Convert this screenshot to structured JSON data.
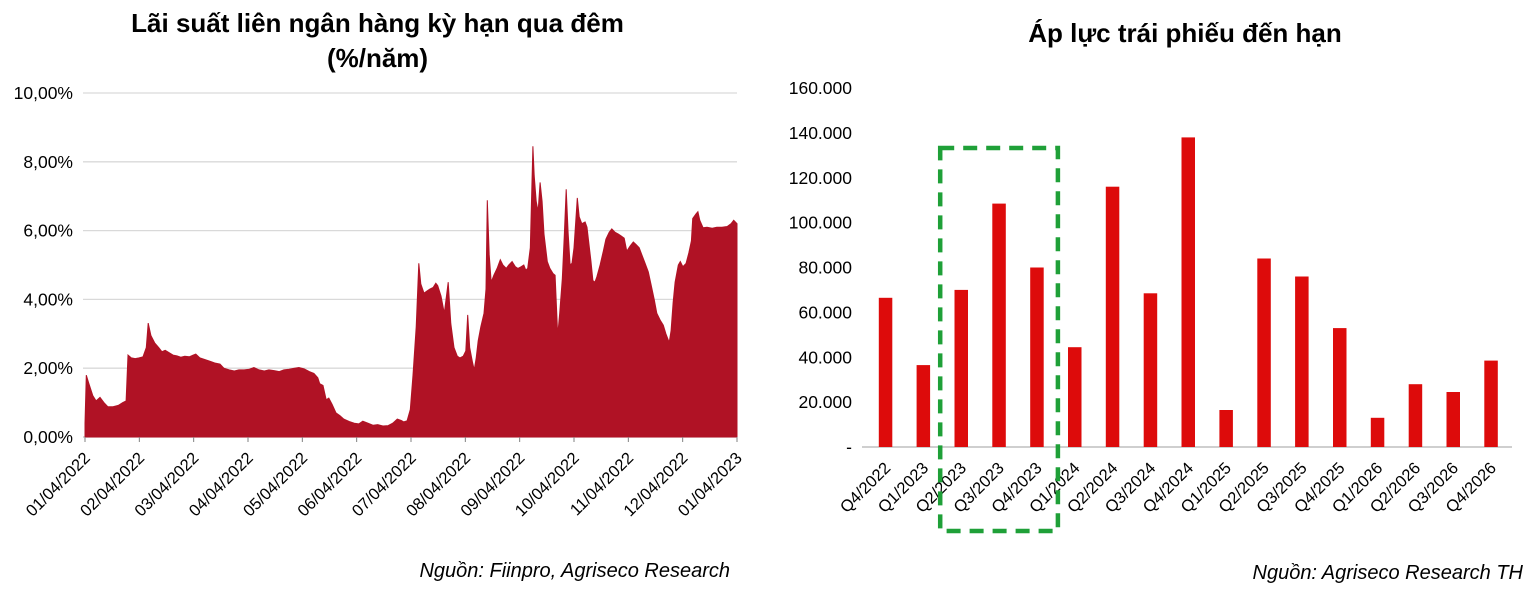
{
  "page": {
    "background": "#ffffff"
  },
  "left_chart": {
    "title_line1": "Lãi suất liên ngân hàng kỳ hạn qua đêm",
    "title_line2": "(%/năm)",
    "source": "Nguồn: Fiinpro, Agriseco Research"
  },
  "right_chart": {
    "title": "Áp lực trái phiếu đến hạn",
    "source": "Nguồn: Agriseco Research TH"
  },
  "colors": {
    "area_fill": "#B01225",
    "bar_red": "#DD0B0B",
    "highlight_green": "#1FA038",
    "gridline": "#D9D9D9",
    "axis_line": "#BFBFBF",
    "tick": "#808080",
    "text": "#000000"
  },
  "chart_data": [
    {
      "type": "area",
      "title": "Lãi suất liên ngân hàng kỳ hạn qua đêm (%/năm)",
      "ylabel": "%/năm",
      "ylim": [
        0,
        10
      ],
      "grid": true,
      "legend": "none",
      "y_ticks": [
        {
          "value": 0,
          "label": "0,00%"
        },
        {
          "value": 2,
          "label": "2,00%"
        },
        {
          "value": 4,
          "label": "4,00%"
        },
        {
          "value": 6,
          "label": "6,00%"
        },
        {
          "value": 8,
          "label": "8,00%"
        },
        {
          "value": 10,
          "label": "10,00%"
        }
      ],
      "x_tick_labels": [
        "01/04/2022",
        "02/04/2022",
        "03/04/2022",
        "04/04/2022",
        "05/04/2022",
        "06/04/2022",
        "07/04/2022",
        "08/04/2022",
        "09/04/2022",
        "10/04/2022",
        "11/04/2022",
        "12/04/2022",
        "01/04/2023"
      ],
      "series": [
        {
          "name": "Lãi suất liên ngân hàng qua đêm",
          "points": [
            [
              0.0,
              0.4
            ],
            [
              0.002,
              1.8
            ],
            [
              0.006,
              1.55
            ],
            [
              0.012,
              1.2
            ],
            [
              0.017,
              1.05
            ],
            [
              0.023,
              1.15
            ],
            [
              0.029,
              1.0
            ],
            [
              0.035,
              0.88
            ],
            [
              0.043,
              0.88
            ],
            [
              0.051,
              0.92
            ],
            [
              0.058,
              1.0
            ],
            [
              0.063,
              1.05
            ],
            [
              0.066,
              2.38
            ],
            [
              0.071,
              2.3
            ],
            [
              0.077,
              2.28
            ],
            [
              0.083,
              2.3
            ],
            [
              0.089,
              2.33
            ],
            [
              0.094,
              2.6
            ],
            [
              0.097,
              3.31
            ],
            [
              0.101,
              2.95
            ],
            [
              0.107,
              2.73
            ],
            [
              0.113,
              2.6
            ],
            [
              0.118,
              2.48
            ],
            [
              0.123,
              2.52
            ],
            [
              0.129,
              2.45
            ],
            [
              0.135,
              2.38
            ],
            [
              0.141,
              2.36
            ],
            [
              0.147,
              2.32
            ],
            [
              0.153,
              2.35
            ],
            [
              0.16,
              2.33
            ],
            [
              0.166,
              2.38
            ],
            [
              0.17,
              2.41
            ],
            [
              0.176,
              2.3
            ],
            [
              0.184,
              2.25
            ],
            [
              0.192,
              2.2
            ],
            [
              0.199,
              2.15
            ],
            [
              0.207,
              2.12
            ],
            [
              0.213,
              2.0
            ],
            [
              0.221,
              1.95
            ],
            [
              0.229,
              1.92
            ],
            [
              0.236,
              1.95
            ],
            [
              0.244,
              1.95
            ],
            [
              0.252,
              1.97
            ],
            [
              0.259,
              2.02
            ],
            [
              0.267,
              1.95
            ],
            [
              0.275,
              1.92
            ],
            [
              0.282,
              1.95
            ],
            [
              0.29,
              1.93
            ],
            [
              0.298,
              1.9
            ],
            [
              0.305,
              1.95
            ],
            [
              0.313,
              1.97
            ],
            [
              0.321,
              2.0
            ],
            [
              0.328,
              2.02
            ],
            [
              0.336,
              1.98
            ],
            [
              0.344,
              1.9
            ],
            [
              0.351,
              1.85
            ],
            [
              0.357,
              1.72
            ],
            [
              0.36,
              1.55
            ],
            [
              0.365,
              1.5
            ],
            [
              0.37,
              1.08
            ],
            [
              0.374,
              1.13
            ],
            [
              0.379,
              0.95
            ],
            [
              0.385,
              0.7
            ],
            [
              0.391,
              0.62
            ],
            [
              0.397,
              0.52
            ],
            [
              0.405,
              0.45
            ],
            [
              0.413,
              0.4
            ],
            [
              0.42,
              0.38
            ],
            [
              0.426,
              0.46
            ],
            [
              0.434,
              0.4
            ],
            [
              0.442,
              0.34
            ],
            [
              0.449,
              0.36
            ],
            [
              0.457,
              0.32
            ],
            [
              0.465,
              0.33
            ],
            [
              0.472,
              0.4
            ],
            [
              0.479,
              0.52
            ],
            [
              0.485,
              0.48
            ],
            [
              0.489,
              0.44
            ],
            [
              0.494,
              0.47
            ],
            [
              0.499,
              0.8
            ],
            [
              0.503,
              1.8
            ],
            [
              0.508,
              3.2
            ],
            [
              0.512,
              5.05
            ],
            [
              0.515,
              4.45
            ],
            [
              0.52,
              4.18
            ],
            [
              0.525,
              4.25
            ],
            [
              0.529,
              4.3
            ],
            [
              0.534,
              4.35
            ],
            [
              0.538,
              4.47
            ],
            [
              0.541,
              4.4
            ],
            [
              0.546,
              4.1
            ],
            [
              0.551,
              3.6
            ],
            [
              0.557,
              4.5
            ],
            [
              0.561,
              3.3
            ],
            [
              0.566,
              2.6
            ],
            [
              0.571,
              2.35
            ],
            [
              0.575,
              2.3
            ],
            [
              0.58,
              2.35
            ],
            [
              0.584,
              2.5
            ],
            [
              0.587,
              3.55
            ],
            [
              0.59,
              2.6
            ],
            [
              0.594,
              2.2
            ],
            [
              0.597,
              1.95
            ],
            [
              0.6,
              2.3
            ],
            [
              0.603,
              2.8
            ],
            [
              0.607,
              3.2
            ],
            [
              0.612,
              3.6
            ],
            [
              0.615,
              4.3
            ],
            [
              0.617,
              6.88
            ],
            [
              0.62,
              5.3
            ],
            [
              0.623,
              4.5
            ],
            [
              0.627,
              4.7
            ],
            [
              0.632,
              4.9
            ],
            [
              0.637,
              5.15
            ],
            [
              0.641,
              5.0
            ],
            [
              0.646,
              4.9
            ],
            [
              0.65,
              5.0
            ],
            [
              0.655,
              5.1
            ],
            [
              0.66,
              4.95
            ],
            [
              0.664,
              4.9
            ],
            [
              0.669,
              4.95
            ],
            [
              0.673,
              5.0
            ],
            [
              0.676,
              4.85
            ],
            [
              0.679,
              4.9
            ],
            [
              0.683,
              5.5
            ],
            [
              0.687,
              8.45
            ],
            [
              0.689,
              7.6
            ],
            [
              0.692,
              6.85
            ],
            [
              0.695,
              6.55
            ],
            [
              0.698,
              7.4
            ],
            [
              0.701,
              6.85
            ],
            [
              0.704,
              5.9
            ],
            [
              0.709,
              5.1
            ],
            [
              0.713,
              4.9
            ],
            [
              0.718,
              4.75
            ],
            [
              0.721,
              4.7
            ],
            [
              0.725,
              2.95
            ],
            [
              0.728,
              3.6
            ],
            [
              0.732,
              4.6
            ],
            [
              0.735,
              5.8
            ],
            [
              0.738,
              7.2
            ],
            [
              0.741,
              5.95
            ],
            [
              0.744,
              5.0
            ],
            [
              0.747,
              5.05
            ],
            [
              0.75,
              5.5
            ],
            [
              0.755,
              6.95
            ],
            [
              0.758,
              6.4
            ],
            [
              0.762,
              6.2
            ],
            [
              0.767,
              6.25
            ],
            [
              0.77,
              6.1
            ],
            [
              0.773,
              5.6
            ],
            [
              0.776,
              5.1
            ],
            [
              0.779,
              4.55
            ],
            [
              0.782,
              4.5
            ],
            [
              0.785,
              4.65
            ],
            [
              0.79,
              5.0
            ],
            [
              0.795,
              5.4
            ],
            [
              0.799,
              5.75
            ],
            [
              0.804,
              5.95
            ],
            [
              0.808,
              6.05
            ],
            [
              0.813,
              5.95
            ],
            [
              0.818,
              5.9
            ],
            [
              0.822,
              5.85
            ],
            [
              0.827,
              5.78
            ],
            [
              0.831,
              5.4
            ],
            [
              0.836,
              5.55
            ],
            [
              0.841,
              5.67
            ],
            [
              0.845,
              5.6
            ],
            [
              0.85,
              5.5
            ],
            [
              0.854,
              5.3
            ],
            [
              0.859,
              5.05
            ],
            [
              0.864,
              4.8
            ],
            [
              0.868,
              4.45
            ],
            [
              0.873,
              4.0
            ],
            [
              0.877,
              3.6
            ],
            [
              0.882,
              3.4
            ],
            [
              0.887,
              3.25
            ],
            [
              0.891,
              3.0
            ],
            [
              0.896,
              2.75
            ],
            [
              0.899,
              3.1
            ],
            [
              0.902,
              3.9
            ],
            [
              0.905,
              4.5
            ],
            [
              0.91,
              5.0
            ],
            [
              0.913,
              5.1
            ],
            [
              0.917,
              4.95
            ],
            [
              0.922,
              5.05
            ],
            [
              0.926,
              5.35
            ],
            [
              0.93,
              5.7
            ],
            [
              0.932,
              6.35
            ],
            [
              0.937,
              6.48
            ],
            [
              0.94,
              6.55
            ],
            [
              0.943,
              6.3
            ],
            [
              0.948,
              6.08
            ],
            [
              0.954,
              6.1
            ],
            [
              0.962,
              6.07
            ],
            [
              0.969,
              6.1
            ],
            [
              0.977,
              6.1
            ],
            [
              0.985,
              6.12
            ],
            [
              0.991,
              6.2
            ],
            [
              0.995,
              6.3
            ],
            [
              1.0,
              6.2
            ]
          ]
        }
      ]
    },
    {
      "type": "bar",
      "title": "Áp lực trái phiếu đến hạn",
      "ylim": [
        0,
        160000
      ],
      "grid": false,
      "legend": "none",
      "y_ticks": [
        {
          "value": 0,
          "label": "-"
        },
        {
          "value": 20000,
          "label": "20.000"
        },
        {
          "value": 40000,
          "label": "40.000"
        },
        {
          "value": 60000,
          "label": "60.000"
        },
        {
          "value": 80000,
          "label": "80.000"
        },
        {
          "value": 100000,
          "label": "100.000"
        },
        {
          "value": 120000,
          "label": "120.000"
        },
        {
          "value": 140000,
          "label": "140.000"
        },
        {
          "value": 160000,
          "label": "160.000"
        }
      ],
      "categories": [
        "Q4/2022",
        "Q1/2023",
        "Q2/2023",
        "Q3/2023",
        "Q4/2023",
        "Q1/2024",
        "Q2/2024",
        "Q3/2024",
        "Q4/2024",
        "Q1/2025",
        "Q2/2025",
        "Q3/2025",
        "Q4/2025",
        "Q1/2026",
        "Q2/2026",
        "Q3/2026",
        "Q4/2026"
      ],
      "values": [
        66500,
        36500,
        70000,
        108500,
        80000,
        44500,
        116000,
        68500,
        138000,
        16500,
        84000,
        76000,
        53000,
        13000,
        28000,
        24500,
        38500
      ],
      "highlight_box": {
        "from_category": "Q2/2023",
        "to_category": "Q4/2023",
        "style": "dashed",
        "color": "#1FA038"
      }
    }
  ]
}
